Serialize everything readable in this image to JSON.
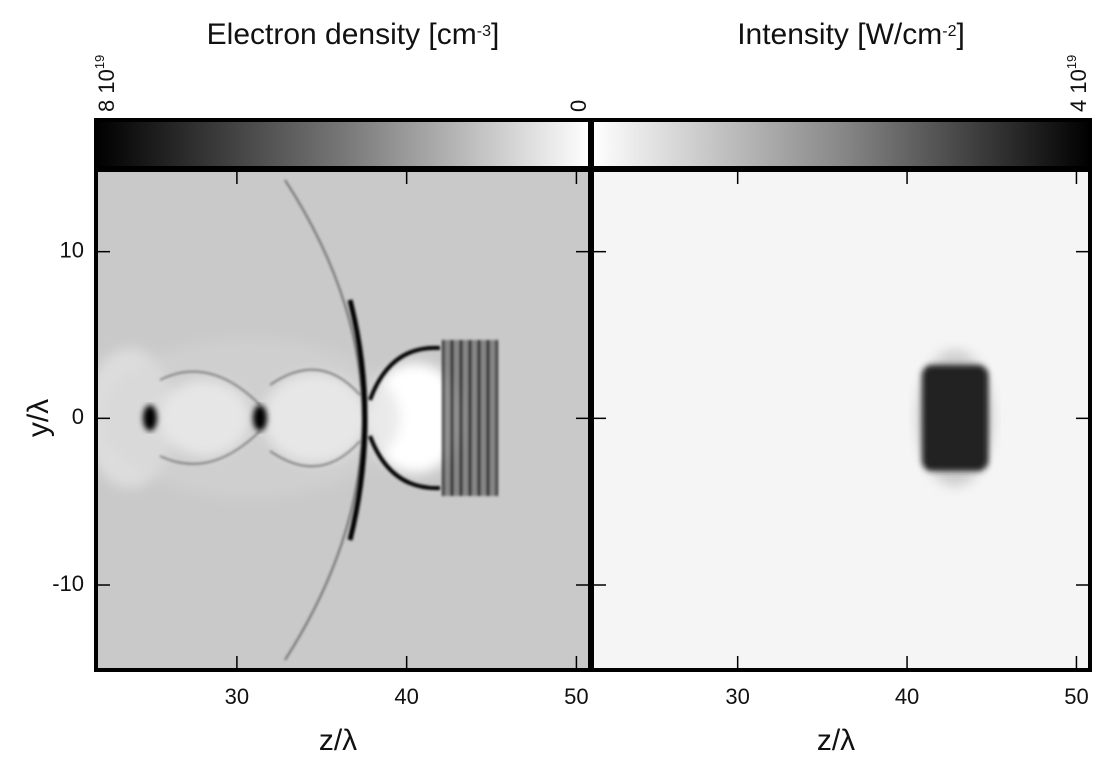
{
  "chart_data": [
    {
      "type": "heatmap",
      "title": [
        "Electron density [cm",
        "-3",
        "]"
      ],
      "xlabel": "z/λ",
      "ylabel": "y/λ",
      "xlim": [
        21.7,
        50.8
      ],
      "xticks": [
        30,
        40,
        50
      ],
      "ylim": [
        -15.1,
        14.9
      ],
      "yticks": [
        -10,
        0,
        10
      ],
      "clim": [
        0,
        8e+19
      ],
      "creverse": true,
      "cticks": [
        {
          "value": 8e+19,
          "label": [
            "8 10",
            "19"
          ]
        },
        0
      ]
    },
    {
      "type": "heatmap",
      "title": [
        "Intensity [W/cm",
        "-2",
        "]"
      ],
      "xlabel": "z/λ",
      "xlim": [
        21.4,
        50.8
      ],
      "xticks": [
        30,
        40,
        50
      ],
      "ylim": [
        -15.1,
        14.9
      ],
      "yticks": [
        -10,
        0,
        10
      ],
      "clim": [
        0,
        4e+19
      ],
      "creverse": false,
      "cticks": [
        {
          "value": 4e+19,
          "label": [
            "4 10",
            "19"
          ]
        }
      ]
    }
  ]
}
